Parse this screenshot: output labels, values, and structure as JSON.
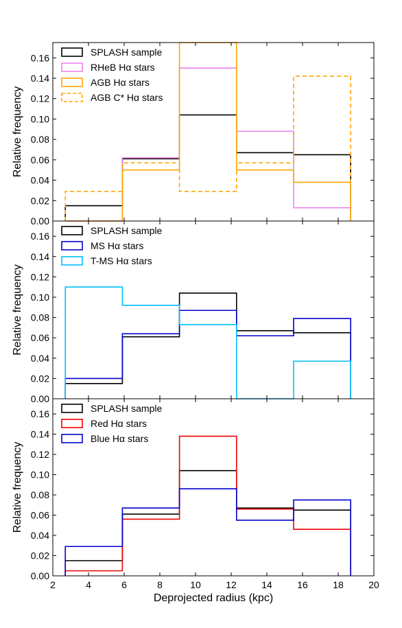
{
  "chart_data": [
    {
      "type": "histogram",
      "ylabel": "Relative frequency",
      "xlim": [
        2,
        20
      ],
      "ylim": [
        0,
        0.175
      ],
      "bin_edges": [
        2.7,
        5.9,
        9.1,
        12.3,
        15.5,
        18.7
      ],
      "yticks": [
        "0.00",
        "0.02",
        "0.04",
        "0.06",
        "0.08",
        "0.10",
        "0.12",
        "0.14",
        "0.16"
      ],
      "legend_position": "upper-left",
      "series": [
        {
          "name": "SPLASH sample",
          "color": "#000000",
          "dashed": false,
          "values": [
            0.015,
            0.061,
            0.104,
            0.067,
            0.065
          ]
        },
        {
          "name": "RHeB Hα stars",
          "color": "#ee82ee",
          "dashed": false,
          "values": [
            0.0,
            0.062,
            0.15,
            0.088,
            0.013
          ]
        },
        {
          "name": "AGB Hα stars",
          "color": "#ffa500",
          "dashed": false,
          "values": [
            0.0,
            0.05,
            0.175,
            0.05,
            0.038
          ]
        },
        {
          "name": "AGB C* Hα stars",
          "color": "#ffa500",
          "dashed": true,
          "values": [
            0.029,
            0.057,
            0.029,
            0.057,
            0.142
          ]
        }
      ]
    },
    {
      "type": "histogram",
      "ylabel": "Relative frequency",
      "xlim": [
        2,
        20
      ],
      "ylim": [
        0,
        0.175
      ],
      "bin_edges": [
        2.7,
        5.9,
        9.1,
        12.3,
        15.5,
        18.7
      ],
      "yticks": [
        "0.00",
        "0.02",
        "0.04",
        "0.06",
        "0.08",
        "0.10",
        "0.12",
        "0.14",
        "0.16"
      ],
      "legend_position": "upper-left",
      "series": [
        {
          "name": "SPLASH sample",
          "color": "#000000",
          "dashed": false,
          "values": [
            0.015,
            0.061,
            0.104,
            0.067,
            0.065
          ]
        },
        {
          "name": "MS Hα stars",
          "color": "#0000cc",
          "dashed": false,
          "values": [
            0.02,
            0.064,
            0.087,
            0.062,
            0.079
          ]
        },
        {
          "name": "T-MS Hα stars",
          "color": "#00bfff",
          "dashed": false,
          "values": [
            0.11,
            0.092,
            0.073,
            0.0,
            0.037
          ]
        }
      ]
    },
    {
      "type": "histogram",
      "ylabel": "Relative frequency",
      "xlabel": "Deprojected radius (kpc)",
      "xlim": [
        2,
        20
      ],
      "ylim": [
        0,
        0.175
      ],
      "bin_edges": [
        2.7,
        5.9,
        9.1,
        12.3,
        15.5,
        18.7
      ],
      "xticks": [
        "2",
        "4",
        "6",
        "8",
        "10",
        "12",
        "14",
        "16",
        "18",
        "20"
      ],
      "yticks": [
        "0.00",
        "0.02",
        "0.04",
        "0.06",
        "0.08",
        "0.10",
        "0.12",
        "0.14",
        "0.16"
      ],
      "legend_position": "upper-left",
      "series": [
        {
          "name": "SPLASH sample",
          "color": "#000000",
          "dashed": false,
          "values": [
            0.015,
            0.061,
            0.104,
            0.067,
            0.065
          ]
        },
        {
          "name": "Red Hα stars",
          "color": "#ee0000",
          "dashed": false,
          "values": [
            0.005,
            0.056,
            0.138,
            0.066,
            0.046
          ]
        },
        {
          "name": "Blue Hα stars",
          "color": "#0000cc",
          "dashed": false,
          "values": [
            0.029,
            0.067,
            0.086,
            0.055,
            0.075
          ]
        }
      ]
    }
  ]
}
